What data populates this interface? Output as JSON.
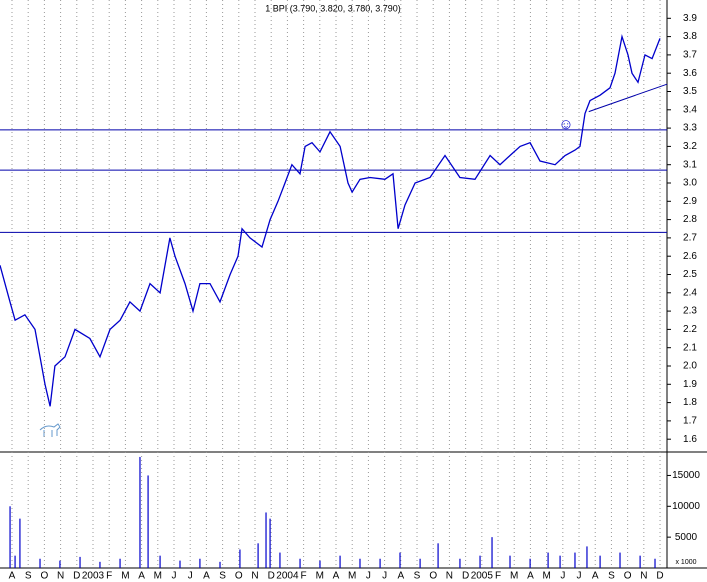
{
  "chart_data": [
    {
      "type": "line",
      "title": "1 BPI (3.790, 3.820, 3.780, 3.790)",
      "x": [
        -0.74,
        -0.12,
        0.19,
        0.8,
        1.42,
        1.73,
        2.04,
        2.35,
        2.65,
        3.27,
        3.89,
        4.81,
        5.43,
        6.05,
        6.67,
        7.28,
        7.9,
        8.52,
        9.14,
        9.75,
        10.06,
        10.68,
        11.17,
        11.6,
        12.22,
        12.84,
        13.46,
        13.95,
        14.2,
        14.69,
        15.43,
        15.93,
        16.42,
        16.85,
        17.28,
        17.78,
        18.09,
        18.52,
        19.01,
        19.63,
        20.25,
        20.74,
        20.99,
        21.48,
        22.1,
        23.02,
        23.52,
        23.83,
        24.26,
        24.88,
        25.8,
        26.73,
        27.65,
        28.58,
        29.51,
        30.12,
        30.74,
        31.36,
        31.98,
        32.59,
        33.52,
        34.14,
        34.75,
        35.06,
        35.37,
        35.68,
        36.3,
        36.91,
        37.22,
        37.65,
        38.02,
        38.27,
        38.64,
        39.07,
        39.51,
        40.0
      ],
      "color": "#0000cc",
      "values": [
        2.55,
        2.35,
        2.25,
        2.28,
        2.2,
        2.05,
        1.9,
        1.78,
        2.0,
        2.05,
        2.2,
        2.15,
        2.05,
        2.2,
        2.25,
        2.35,
        2.3,
        2.45,
        2.4,
        2.7,
        2.6,
        2.45,
        2.3,
        2.45,
        2.45,
        2.35,
        2.5,
        2.6,
        2.75,
        2.7,
        2.65,
        2.8,
        2.9,
        3.0,
        3.1,
        3.05,
        3.2,
        3.22,
        3.17,
        3.28,
        3.2,
        3.0,
        2.95,
        3.02,
        3.03,
        3.02,
        3.05,
        2.75,
        2.88,
        3.0,
        3.03,
        3.15,
        3.03,
        3.02,
        3.15,
        3.1,
        3.15,
        3.2,
        3.22,
        3.12,
        3.1,
        3.15,
        3.18,
        3.2,
        3.38,
        3.45,
        3.48,
        3.52,
        3.6,
        3.8,
        3.7,
        3.6,
        3.55,
        3.7,
        3.68,
        3.79
      ],
      "xlim": [
        -0.74,
        40.43
      ],
      "ylim": [
        1.53,
        4.0
      ],
      "yticks": [
        1.6,
        1.7,
        1.8,
        1.9,
        {
          "value": 2.0,
          "label": "2.0"
        },
        2.1,
        2.2,
        2.3,
        2.4,
        2.5,
        2.6,
        2.7,
        2.8,
        2.9,
        {
          "value": 3.0,
          "label": "3.0"
        },
        3.1,
        3.2,
        3.3,
        3.4,
        3.5,
        3.6,
        3.7,
        3.8,
        3.9
      ],
      "hlines": [
        3.29,
        3.07,
        2.73
      ],
      "hline_color": "#0000aa",
      "trendline": {
        "x": [
          35.6,
          40.43
        ],
        "values": [
          3.39,
          3.54
        ]
      }
    },
    {
      "type": "bar",
      "y_label": "x 1000",
      "color": "#0000cc",
      "x": [
        -0.12,
        0.19,
        0.49,
        1.73,
        2.96,
        4.2,
        5.43,
        6.67,
        7.9,
        8.4,
        9.14,
        10.37,
        11.6,
        12.84,
        14.07,
        15.19,
        15.68,
        15.93,
        16.54,
        17.78,
        19.01,
        20.25,
        21.48,
        22.72,
        23.95,
        25.19,
        26.3,
        27.65,
        28.89,
        29.63,
        30.74,
        31.98,
        33.09,
        33.83,
        34.75,
        35.49,
        36.3,
        37.53,
        38.77,
        39.69
      ],
      "values": [
        10000,
        2000,
        8000,
        1500,
        1200,
        1800,
        1000,
        1500,
        18000,
        15000,
        2000,
        1200,
        1500,
        1000,
        3000,
        4000,
        9000,
        8000,
        2500,
        1500,
        1200,
        2000,
        1500,
        1500,
        2500,
        1500,
        4000,
        1500,
        2000,
        5000,
        2000,
        1500,
        2500,
        2000,
        2500,
        3500,
        2000,
        2500,
        2000,
        1500
      ],
      "xlim": [
        -0.74,
        40.43
      ],
      "ylim": [
        0,
        18800
      ],
      "yticks": [
        5000,
        10000,
        15000
      ],
      "xticks": [
        {
          "value": 0,
          "label": "A"
        },
        {
          "value": 1,
          "label": "S"
        },
        {
          "value": 2,
          "label": "O"
        },
        {
          "value": 3,
          "label": "N"
        },
        {
          "value": 4,
          "label": "D"
        },
        {
          "value": 5,
          "label": "2003"
        },
        {
          "value": 6,
          "label": "F"
        },
        {
          "value": 7,
          "label": "M"
        },
        {
          "value": 8,
          "label": "A"
        },
        {
          "value": 9,
          "label": "M"
        },
        {
          "value": 10,
          "label": "J"
        },
        {
          "value": 11,
          "label": "J"
        },
        {
          "value": 12,
          "label": "A"
        },
        {
          "value": 13,
          "label": "S"
        },
        {
          "value": 14,
          "label": "O"
        },
        {
          "value": 15,
          "label": "N"
        },
        {
          "value": 16,
          "label": "D"
        },
        {
          "value": 17,
          "label": "2004"
        },
        {
          "value": 18,
          "label": "F"
        },
        {
          "value": 19,
          "label": "M"
        },
        {
          "value": 20,
          "label": "A"
        },
        {
          "value": 21,
          "label": "M"
        },
        {
          "value": 22,
          "label": "J"
        },
        {
          "value": 23,
          "label": "J"
        },
        {
          "value": 24,
          "label": "A"
        },
        {
          "value": 25,
          "label": "S"
        },
        {
          "value": 26,
          "label": "O"
        },
        {
          "value": 27,
          "label": "N"
        },
        {
          "value": 28,
          "label": "D"
        },
        {
          "value": 29,
          "label": "2005"
        },
        {
          "value": 30,
          "label": "F"
        },
        {
          "value": 31,
          "label": "M"
        },
        {
          "value": 32,
          "label": "A"
        },
        {
          "value": 33,
          "label": "M"
        },
        {
          "value": 34,
          "label": "J"
        },
        {
          "value": 35,
          "label": "J"
        },
        {
          "value": 36,
          "label": "A"
        },
        {
          "value": 37,
          "label": "S"
        },
        {
          "value": 38,
          "label": "O"
        },
        {
          "value": 39,
          "label": "N"
        },
        {
          "value": 40,
          "label": "D"
        }
      ]
    }
  ]
}
